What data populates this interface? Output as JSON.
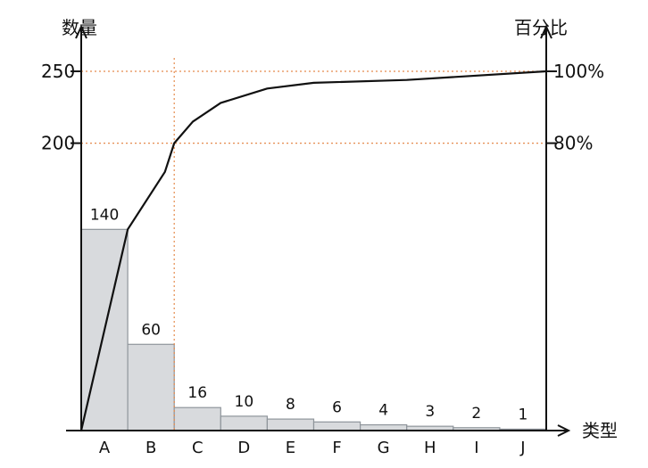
{
  "chart_data": {
    "type": "bar",
    "categories": [
      "A",
      "B",
      "C",
      "D",
      "E",
      "F",
      "G",
      "H",
      "I",
      "J"
    ],
    "values": [
      140,
      60,
      16,
      10,
      8,
      6,
      4,
      3,
      2,
      1
    ],
    "ylabel": "数量",
    "y2label": "百分比",
    "xlabel": "类型",
    "left_ticks": [
      200,
      250
    ],
    "right_ticks": [
      "80%",
      "100%"
    ],
    "ylim": [
      0,
      250
    ],
    "y2lim": [
      0,
      100
    ],
    "cumulative_points": [
      {
        "x": 0,
        "y": 0
      },
      {
        "x": 1,
        "y": 140
      },
      {
        "x": 1.8,
        "y": 180
      },
      {
        "x": 2,
        "y": 200
      },
      {
        "x": 2.4,
        "y": 215
      },
      {
        "x": 3,
        "y": 228
      },
      {
        "x": 4,
        "y": 238
      },
      {
        "x": 5,
        "y": 242
      },
      {
        "x": 7,
        "y": 244
      },
      {
        "x": 10,
        "y": 250
      }
    ],
    "reference_lines": {
      "x_vertical": 2,
      "y_horizontals": [
        200,
        250
      ]
    },
    "grid": false,
    "legend": "none"
  }
}
